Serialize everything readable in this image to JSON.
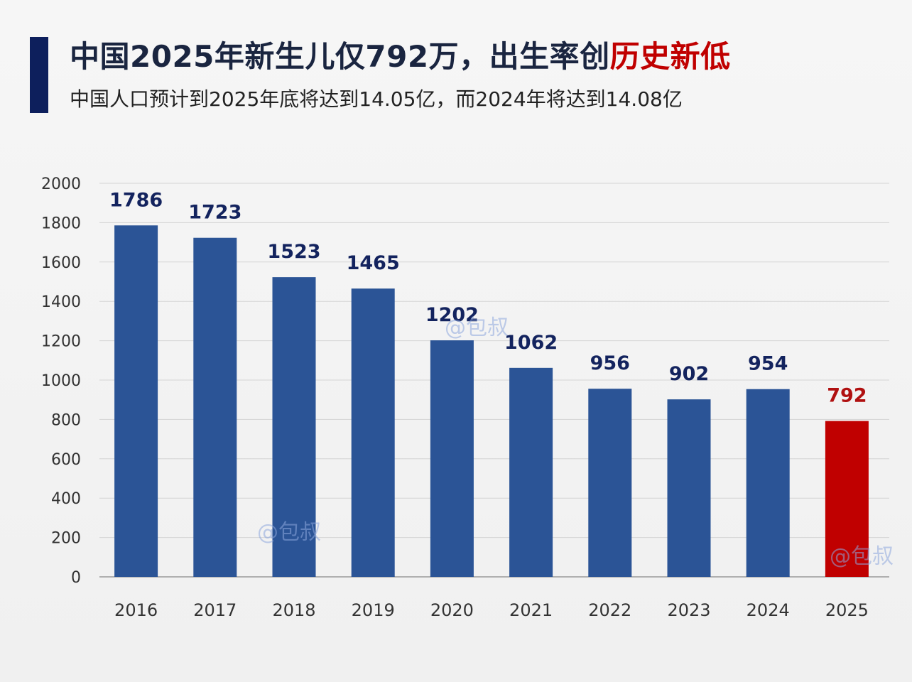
{
  "header": {
    "title_main": "中国2025年新生儿仅792万，出生率创",
    "title_highlight": "历史新低",
    "subtitle": "中国人口预计到2025年底将达到14.05亿，而2024年将达到14.08亿"
  },
  "colors": {
    "bar": "#2b5496",
    "highlight_bar": "#c00000",
    "value_label": "#13235e",
    "highlight_label": "#b01010",
    "accent": "#0d1f5c"
  },
  "watermarks": [
    "@包叔",
    "@包叔",
    "@包叔"
  ],
  "chart_data": {
    "type": "bar",
    "categories": [
      "2016",
      "2017",
      "2018",
      "2019",
      "2020",
      "2021",
      "2022",
      "2023",
      "2024",
      "2025"
    ],
    "values": [
      1786,
      1723,
      1523,
      1465,
      1202,
      1062,
      956,
      902,
      954,
      792
    ],
    "highlight_index": 9,
    "ylim": [
      0,
      2000
    ],
    "yticks": [
      0,
      200,
      400,
      600,
      800,
      1000,
      1200,
      1400,
      1600,
      1800,
      2000
    ],
    "grid": true,
    "title": "",
    "xlabel": "",
    "ylabel": ""
  }
}
